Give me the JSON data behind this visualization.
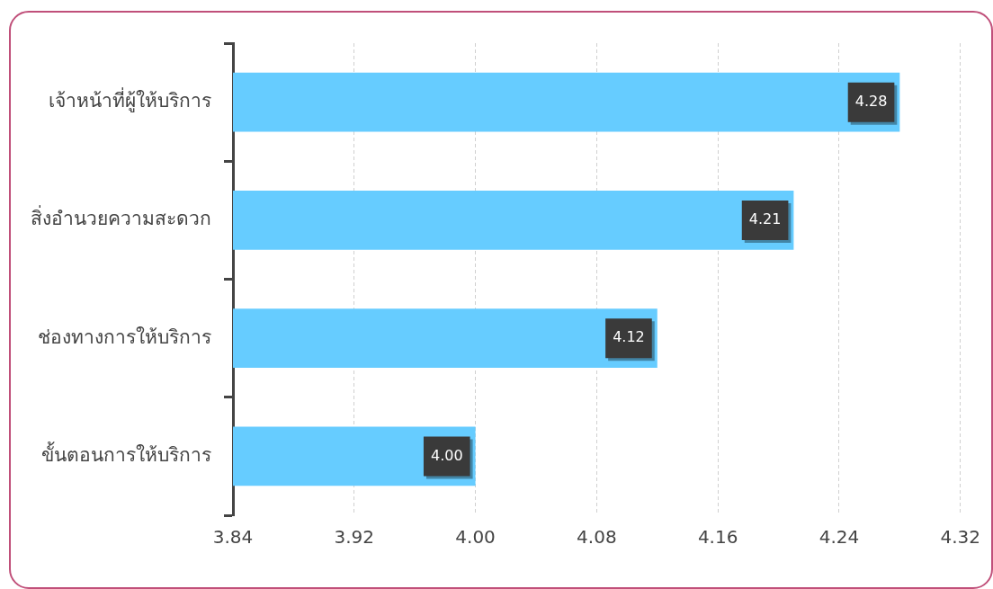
{
  "chart_data": {
    "type": "bar",
    "orientation": "horizontal",
    "categories": [
      "เจ้าหน้าที่ผู้ให้บริการ",
      "สิ่งอำนวยความสะดวก",
      "ช่องทางการให้บริการ",
      "ขั้นตอนการให้บริการ"
    ],
    "values": [
      4.28,
      4.21,
      4.12,
      4.0
    ],
    "value_labels": [
      "4.28",
      "4.21",
      "4.12",
      "4.00"
    ],
    "color": "#66ccff",
    "xlim": [
      3.84,
      4.32
    ],
    "xticks": [
      {
        "value": 3.84,
        "label": "3.84"
      },
      {
        "value": 3.92,
        "label": "3.92"
      },
      {
        "value": 4.0,
        "label": "4.00"
      },
      {
        "value": 4.08,
        "label": "4.08"
      },
      {
        "value": 4.16,
        "label": "4.16"
      },
      {
        "value": 4.24,
        "label": "4.24"
      },
      {
        "value": 4.32,
        "label": "4.32"
      }
    ],
    "grid": "x",
    "legend": false
  }
}
